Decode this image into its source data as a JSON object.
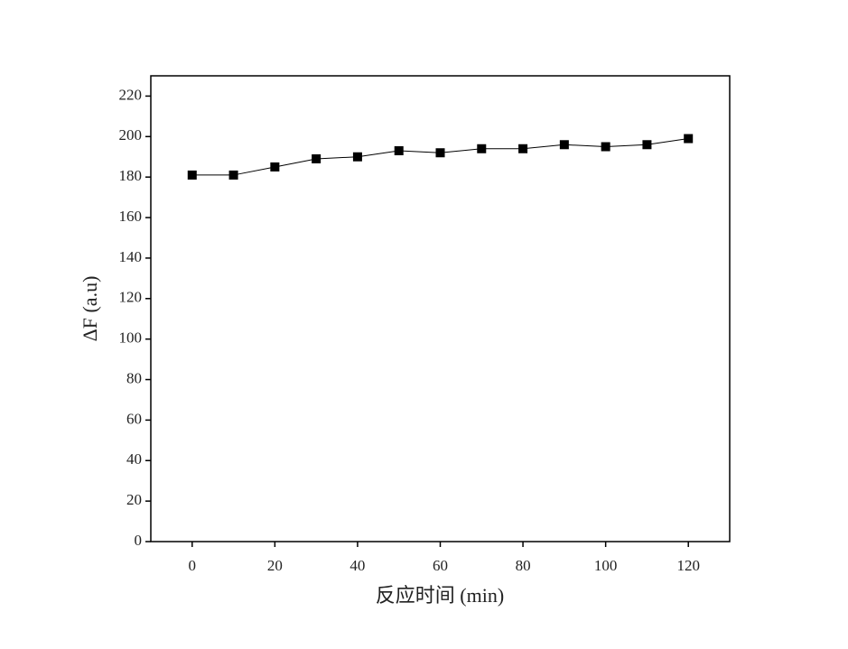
{
  "chart_data": {
    "type": "line",
    "x_label": "反应时间 (min)",
    "y_label": "ΔF (a.u)",
    "x": [
      0,
      10,
      20,
      30,
      40,
      50,
      60,
      70,
      80,
      90,
      100,
      110,
      120
    ],
    "series": [
      {
        "color": "#000000",
        "values": [
          181,
          181,
          185,
          189,
          190,
          193,
          192,
          194,
          194,
          196,
          195,
          196,
          199
        ]
      }
    ],
    "xlim": [
      -10,
      130
    ],
    "xticks": [
      0,
      20,
      40,
      60,
      80,
      100,
      120
    ],
    "ylim": [
      0,
      230
    ],
    "yticks": [
      0,
      20,
      40,
      60,
      80,
      100,
      120,
      140,
      160,
      180,
      200,
      220
    ],
    "grid": false
  }
}
